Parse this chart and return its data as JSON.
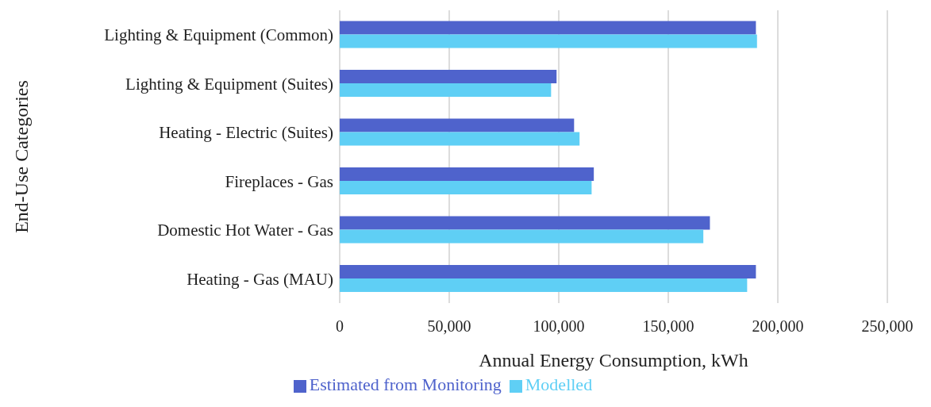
{
  "chart_data": {
    "type": "bar",
    "orientation": "horizontal",
    "xlabel": "Annual Energy Consumption, kWh",
    "ylabel": "End-Use Categories",
    "categories": [
      "Lighting & Equipment (Common)",
      "Lighting & Equipment (Suites)",
      "Heating - Electric (Suites)",
      "Fireplaces - Gas",
      "Domestic Hot Water - Gas",
      "Heating - Gas (MAU)"
    ],
    "series": [
      {
        "name": "Estimated from Monitoring",
        "color": "#4f63cc",
        "values": [
          190000,
          99000,
          107000,
          116000,
          169000,
          190000
        ]
      },
      {
        "name": "Modelled",
        "color": "#5fcff5",
        "values": [
          190500,
          96500,
          109500,
          115000,
          166000,
          186000
        ]
      }
    ],
    "xlim": [
      0,
      250000
    ],
    "xticks": [
      0,
      {
        "value": 50000,
        "label": "50,000"
      },
      {
        "value": 100000,
        "label": "100,000"
      },
      {
        "value": 150000,
        "label": "150,000"
      },
      {
        "value": 200000,
        "label": "200,000"
      },
      {
        "value": 250000,
        "label": "250,000"
      }
    ],
    "grid": "x",
    "legend": "bottom"
  }
}
